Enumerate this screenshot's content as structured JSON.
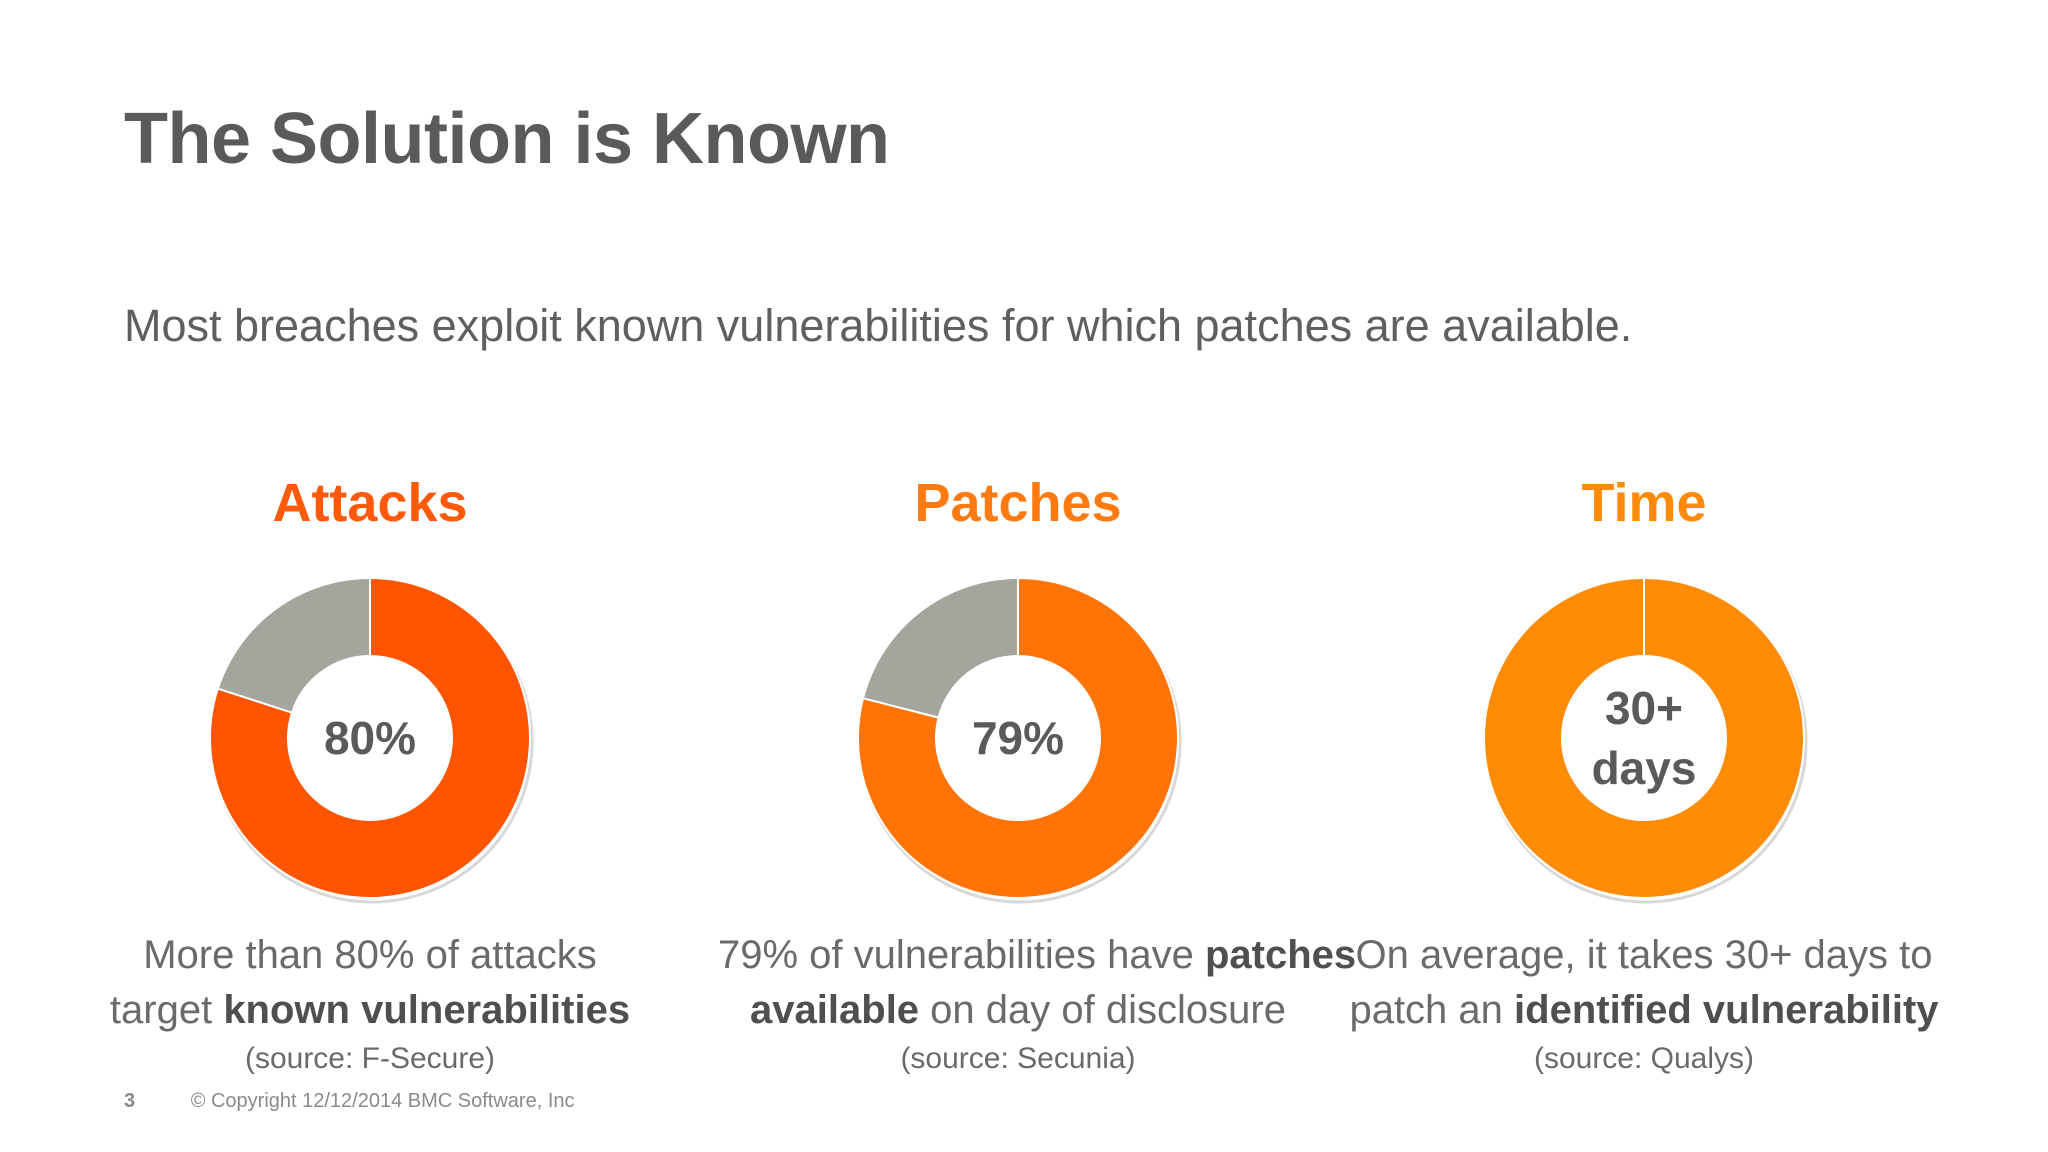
{
  "slide": {
    "title": "The Solution is Known",
    "subtitle": "Most breaches exploit known vulnerabilities for which patches are available.",
    "footer": {
      "page_number": "3",
      "copyright": "© Copyright 12/12/2014 BMC Software, Inc"
    }
  },
  "chart_data": [
    {
      "type": "pie",
      "title": "Attacks",
      "center_label": "80%",
      "slices": [
        {
          "value": 80,
          "color": "#ff5500"
        },
        {
          "value": 20,
          "color": "#a5a59d"
        }
      ],
      "heading_color": "#ff5a0a",
      "desc_line1": [
        {
          "t": "More than 80% of attacks",
          "b": false
        }
      ],
      "desc_line2": [
        {
          "t": "target ",
          "b": false
        },
        {
          "t": "known vulnerabilities",
          "b": true
        }
      ],
      "source": "(source: F-Secure)"
    },
    {
      "type": "pie",
      "title": "Patches",
      "center_label": "79%",
      "slices": [
        {
          "value": 79,
          "color": "#ff7307"
        },
        {
          "value": 21,
          "color": "#a5a59d"
        }
      ],
      "heading_color": "#ff7a10",
      "desc_line1": [
        {
          "t": "79% of vulnerabilities have ",
          "b": false
        },
        {
          "t": "patches",
          "b": true
        }
      ],
      "desc_line2": [
        {
          "t": "available",
          "b": true
        },
        {
          "t": " on day of disclosure",
          "b": false
        }
      ],
      "source": "(source: Secunia)"
    },
    {
      "type": "pie",
      "title": "Time",
      "center_label": "30+\ndays",
      "slices": [
        {
          "value": 100,
          "color": "#ff8c07"
        }
      ],
      "heading_color": "#ff8a0a",
      "desc_line1": [
        {
          "t": "On average, it takes 30+ days to",
          "b": false
        }
      ],
      "desc_line2": [
        {
          "t": "patch an ",
          "b": false
        },
        {
          "t": "identified vulnerability",
          "b": true
        }
      ],
      "source": "(source: Qualys)"
    }
  ]
}
